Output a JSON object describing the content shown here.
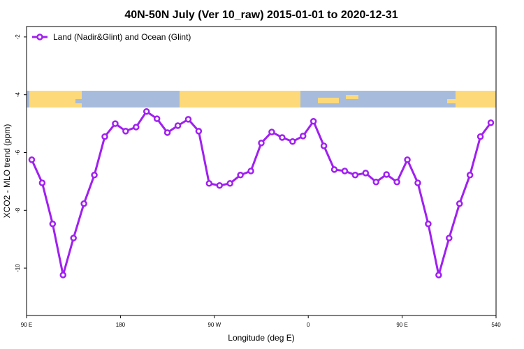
{
  "chart_data": {
    "type": "line",
    "title": "40N-50N July (Ver 10_raw)   2015-01-01 to 2020-12-31",
    "x_label": "Longitude (deg E)",
    "y_label": "XCO2 - MLO trend (ppm)",
    "x": [
      95,
      105,
      115,
      125,
      135,
      145,
      155,
      165,
      175,
      185,
      195,
      205,
      215,
      225,
      235,
      245,
      255,
      265,
      275,
      285,
      295,
      305,
      315,
      325,
      335,
      345,
      355,
      365,
      375,
      385,
      395,
      405,
      415,
      425,
      435,
      445,
      455,
      465,
      475,
      485,
      495,
      505,
      515,
      525,
      535
    ],
    "series": [
      {
        "name": "Land (Nadir&Glint) and Ocean (Glint)",
        "color": "#a020f0",
        "values": [
          -6.25,
          -7.05,
          -8.47,
          -10.24,
          -8.96,
          -7.77,
          -6.78,
          -5.45,
          -5.0,
          -5.26,
          -5.12,
          -4.58,
          -4.83,
          -5.31,
          -5.07,
          -4.85,
          -5.26,
          -7.07,
          -7.14,
          -7.07,
          -6.78,
          -6.64,
          -5.67,
          -5.29,
          -5.48,
          -5.62,
          -5.43,
          -4.92,
          -5.77,
          -6.59,
          -6.64,
          -6.78,
          -6.71,
          -7.02,
          -6.76,
          -7.02,
          -6.25,
          -7.05,
          -8.47,
          -10.24,
          -8.96,
          -7.77,
          -6.78,
          -5.45,
          -4.97
        ]
      }
    ],
    "xlim": [
      90,
      540
    ],
    "xticks": [
      {
        "value": 90,
        "label": "90 E"
      },
      180,
      {
        "value": 270,
        "label": "90 W"
      },
      {
        "value": 360,
        "label": "0"
      },
      {
        "value": 450,
        "label": "90 E"
      },
      540
    ],
    "ylim": [
      -11.64,
      -1.64
    ],
    "yticks": [
      -2,
      -4,
      -6,
      -8,
      -10
    ],
    "legend": "top-left"
  }
}
